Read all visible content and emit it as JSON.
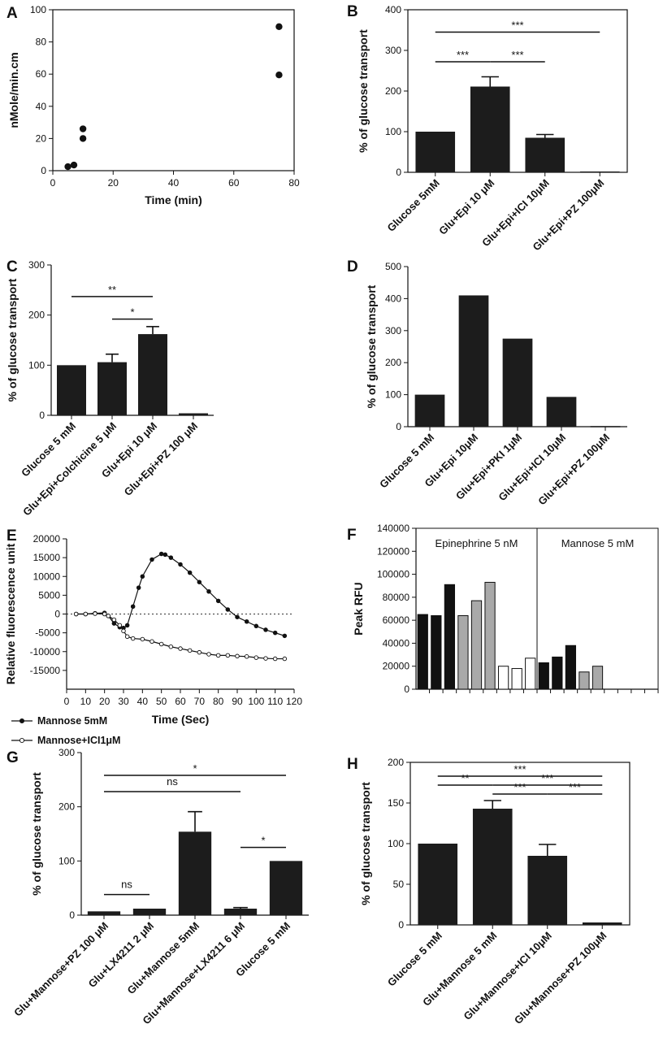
{
  "chart_data": [
    {
      "id": "A",
      "type": "scatter",
      "panel_label": "A",
      "xlabel": "Time (min)",
      "ylabel": "nMole/min.cm",
      "xlim": [
        0,
        80
      ],
      "ylim": [
        0,
        100
      ],
      "xticks": [
        "0",
        "20",
        "40",
        "60",
        "80"
      ],
      "yticks": [
        "0",
        "20",
        "40",
        "60",
        "80",
        "100"
      ],
      "points": [
        [
          5,
          2.5
        ],
        [
          7,
          3.5
        ],
        [
          10,
          20
        ],
        [
          10,
          26
        ],
        [
          75,
          59.5
        ],
        [
          75,
          89.5
        ]
      ]
    },
    {
      "id": "B",
      "type": "bar",
      "panel_label": "B",
      "ylabel": "% of glucose transport",
      "ylim": [
        0,
        400
      ],
      "yticks": [
        "0",
        "100",
        "200",
        "300",
        "400"
      ],
      "categories": [
        "Glucose 5mM",
        "Glu+Epi 10 μM",
        "Glu+Epi+ICI 10μM",
        "Glu+Epi+PZ 100μM"
      ],
      "values": [
        100,
        211,
        85,
        2
      ],
      "errors": [
        0,
        24,
        8,
        0
      ],
      "significance": [
        {
          "from": 0,
          "to": 3,
          "label": "***",
          "y": 345
        },
        {
          "from": 0,
          "to": 1,
          "label": "***",
          "y": 272
        },
        {
          "from": 1,
          "to": 2,
          "label": "***",
          "y": 272
        }
      ]
    },
    {
      "id": "C",
      "type": "bar",
      "panel_label": "C",
      "ylabel": "% of glucose transport",
      "ylim": [
        0,
        300
      ],
      "yticks": [
        "0",
        "100",
        "200",
        "300"
      ],
      "categories": [
        "Glucose 5 mM",
        "Glu+Epi+Colchicine 5 μM",
        "Glu+Epi 10 μM",
        "Glu+Epi+PZ 100 μM"
      ],
      "values": [
        100,
        106,
        162,
        4
      ],
      "errors": [
        0,
        16,
        15,
        0
      ],
      "significance": [
        {
          "from": 0,
          "to": 2,
          "label": "**",
          "y": 237
        },
        {
          "from": 1,
          "to": 2,
          "label": "*",
          "y": 192
        }
      ]
    },
    {
      "id": "D",
      "type": "bar",
      "panel_label": "D",
      "ylabel": "% of glucose transport",
      "ylim": [
        0,
        500
      ],
      "yticks": [
        "0",
        "100",
        "200",
        "300",
        "400",
        "500"
      ],
      "categories": [
        "Glucose 5 mM",
        "Glu+Epi 10μM",
        "Glu+Epi+PKI 1μM",
        "Glu+Epi+ICI 10μM",
        "Glu+Epi+PZ 100μM"
      ],
      "values": [
        100,
        410,
        275,
        93,
        2
      ],
      "errors": [
        0,
        0,
        0,
        0,
        0
      ],
      "significance": []
    },
    {
      "id": "E",
      "type": "line",
      "panel_label": "E",
      "xlabel": "Time (Sec)",
      "ylabel": "Relative fluorescence unit",
      "xlim": [
        0,
        120
      ],
      "ylim": [
        -20000,
        20000
      ],
      "xticks": [
        "0",
        "10",
        "20",
        "30",
        "40",
        "50",
        "60",
        "70",
        "80",
        "90",
        "100",
        "110",
        "120"
      ],
      "yticks": [
        "-15000",
        "-10000",
        "-5000",
        "0",
        "5000",
        "10000",
        "15000",
        "20000"
      ],
      "series": [
        {
          "name": "Mannose 5mM",
          "marker": "filled",
          "x": [
            5,
            10,
            15,
            20,
            22,
            25,
            28,
            30,
            32,
            35,
            38,
            40,
            45,
            50,
            52,
            55,
            60,
            65,
            70,
            75,
            80,
            85,
            90,
            95,
            100,
            105,
            110,
            115
          ],
          "y": [
            0,
            0,
            200,
            300,
            -500,
            -2500,
            -3500,
            -3700,
            -3000,
            2000,
            7000,
            10000,
            14500,
            16000,
            15800,
            15000,
            13200,
            11000,
            8500,
            6000,
            3500,
            1200,
            -800,
            -2000,
            -3200,
            -4200,
            -5000,
            -5800
          ]
        },
        {
          "name": "Mannose+ICI1μM",
          "marker": "open",
          "x": [
            5,
            10,
            15,
            20,
            22,
            25,
            28,
            30,
            32,
            35,
            40,
            45,
            50,
            55,
            60,
            65,
            70,
            75,
            80,
            85,
            90,
            95,
            100,
            105,
            110,
            115
          ],
          "y": [
            0,
            0,
            100,
            0,
            -500,
            -1500,
            -3000,
            -4500,
            -6000,
            -6500,
            -6700,
            -7300,
            -8000,
            -8700,
            -9200,
            -9700,
            -10200,
            -10700,
            -11000,
            -11000,
            -11200,
            -11300,
            -11600,
            -11800,
            -11900,
            -11900
          ]
        }
      ]
    },
    {
      "id": "F",
      "type": "bar",
      "panel_label": "F",
      "ylabel": "Peak RFU",
      "ylim": [
        0,
        140000
      ],
      "yticks": [
        "0",
        "20000",
        "40000",
        "60000",
        "80000",
        "100000",
        "120000",
        "140000"
      ],
      "regions": [
        {
          "label": "Epinephrine 5 nM",
          "start": 0,
          "end": 9
        },
        {
          "label": "Mannose 5 mM",
          "start": 9,
          "end": 18
        }
      ],
      "values": [
        65000,
        64000,
        91000,
        64000,
        77000,
        93000,
        20000,
        18000,
        27000,
        23000,
        28000,
        38000,
        15000,
        20000,
        0,
        0,
        0,
        0
      ],
      "colors": [
        "#111111",
        "#111111",
        "#111111",
        "#a9a9a9",
        "#a9a9a9",
        "#a9a9a9",
        "#ffffff",
        "#ffffff",
        "#ffffff",
        "#111111",
        "#111111",
        "#111111",
        "#a9a9a9",
        "#a9a9a9",
        "#ffffff",
        "#ffffff",
        "#ffffff",
        "#ffffff"
      ]
    },
    {
      "id": "G",
      "type": "bar",
      "panel_label": "G",
      "ylabel": "% of glucose transport",
      "ylim": [
        0,
        300
      ],
      "yticks": [
        "0",
        "100",
        "200",
        "300"
      ],
      "categories": [
        "Glu+Mannose+PZ 100 μM",
        "Glu+LX4211 2 μM",
        "Glu+Mannose 5mM",
        "Glu+Mannose+LX4211 6 μM",
        "Glucose 5 mM"
      ],
      "values": [
        7,
        12,
        154,
        12,
        100
      ],
      "errors": [
        0,
        0,
        37,
        2,
        0
      ],
      "significance": [
        {
          "from": 0,
          "to": 4,
          "label": "*",
          "y": 258
        },
        {
          "from": 0,
          "to": 3,
          "label": "ns",
          "y": 228
        },
        {
          "from": 3,
          "to": 4,
          "label": "*",
          "y": 125
        },
        {
          "from": 0,
          "to": 1,
          "label": "ns",
          "y": 38
        }
      ]
    },
    {
      "id": "H",
      "type": "bar",
      "panel_label": "H",
      "ylabel": "% of glucose transport",
      "ylim": [
        0,
        200
      ],
      "yticks": [
        "0",
        "50",
        "100",
        "150",
        "200"
      ],
      "categories": [
        "Glucose 5 mM",
        "Glu+Mannose 5 mM",
        "Glu+Mannose+ICI 10μM",
        "Glu+Mannose+PZ 100μM"
      ],
      "values": [
        100,
        143,
        85,
        3
      ],
      "errors": [
        0,
        10,
        14,
        0
      ],
      "significance": [
        {
          "from": 0,
          "to": 3,
          "label": "***",
          "y": 183
        },
        {
          "from": 0,
          "to": 1,
          "label": "**",
          "y": 172
        },
        {
          "from": 1,
          "to": 3,
          "label": "***",
          "y": 172
        },
        {
          "from": 1,
          "to": 2,
          "label": "***",
          "y": 161
        },
        {
          "from": 2,
          "to": 3,
          "label": "***",
          "y": 161
        }
      ]
    }
  ]
}
